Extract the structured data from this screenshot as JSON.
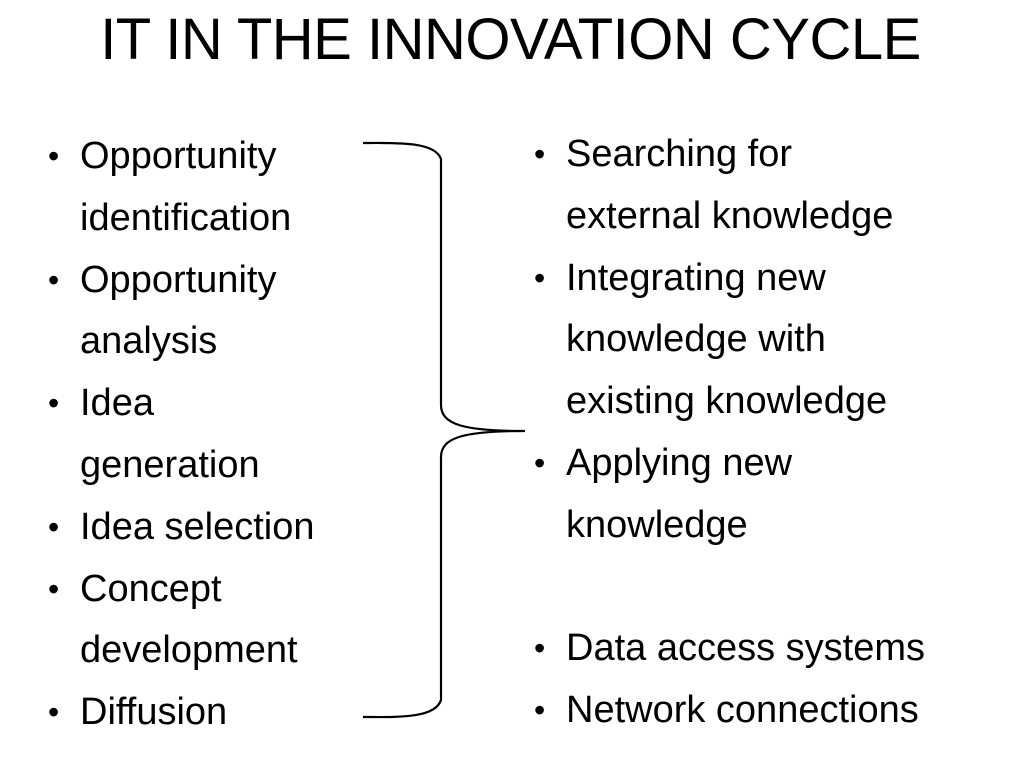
{
  "title": "IT IN THE INNOVATION CYCLE",
  "bullet_glyph": "•",
  "left_items": [
    [
      "Opportunity",
      "identification"
    ],
    [
      "Opportunity",
      "analysis"
    ],
    [
      "Idea",
      "generation"
    ],
    [
      "Idea selection"
    ],
    [
      "Concept",
      "development"
    ],
    [
      "Diffusion"
    ]
  ],
  "right_items": [
    [
      "Searching for",
      "external knowledge"
    ],
    [
      "Integrating new",
      "knowledge with",
      "existing knowledge"
    ],
    [
      "Applying new",
      "knowledge"
    ],
    [
      "Data access systems"
    ],
    [
      "Network connections"
    ]
  ],
  "right_gap_before_index": 3
}
